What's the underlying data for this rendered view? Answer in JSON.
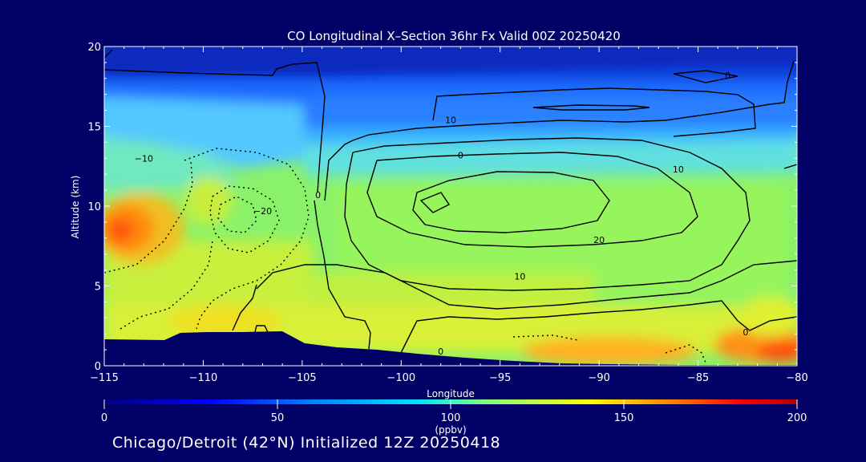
{
  "chart_data": {
    "type": "heatmap",
    "title": "CO Longitudinal X–Section 36hr  Fx Valid 00Z 20250420",
    "xlabel": "Longitude",
    "ylabel": "Altitude (km)",
    "xlim": [
      -115,
      -80
    ],
    "ylim": [
      0,
      20
    ],
    "x_ticks": [
      -115,
      -110,
      -105,
      -100,
      -95,
      -90,
      -85,
      -80
    ],
    "x_tick_labels": [
      "−115",
      "−110",
      "−105",
      "−100",
      "−95",
      "−90",
      "−85",
      "−80"
    ],
    "y_ticks": [
      0,
      5,
      10,
      15,
      20
    ],
    "y_tick_labels": [
      "0",
      "5",
      "10",
      "15",
      "20"
    ],
    "colorbar": {
      "min": 0,
      "max": 200,
      "ticks": [
        0,
        50,
        100,
        150,
        200
      ],
      "tick_labels": [
        "0",
        "50",
        "100",
        "150",
        "200"
      ],
      "units": "(ppbv)",
      "colors": [
        "#000080",
        "#0000ff",
        "#0080ff",
        "#00e0ff",
        "#80ff80",
        "#ffff00",
        "#ff8000",
        "#ff0000",
        "#b00000"
      ]
    },
    "contour_labels": [
      {
        "lon": -113,
        "alt": 13.0,
        "text": "−10"
      },
      {
        "lon": -107,
        "alt": 9.7,
        "text": "−20"
      },
      {
        "lon": -97,
        "alt": 13.2,
        "text": "0"
      },
      {
        "lon": -97.5,
        "alt": 15.4,
        "text": "10"
      },
      {
        "lon": -86,
        "alt": 12.3,
        "text": "10"
      },
      {
        "lon": -90,
        "alt": 7.9,
        "text": "20"
      },
      {
        "lon": -94,
        "alt": 5.6,
        "text": "10"
      },
      {
        "lon": -83.5,
        "alt": 18.2,
        "text": "0"
      },
      {
        "lon": -98,
        "alt": 0.9,
        "text": "0"
      },
      {
        "lon": -104.2,
        "alt": 10.7,
        "text": "0"
      },
      {
        "lon": -82.6,
        "alt": 2.1,
        "text": "0"
      }
    ]
  },
  "footer": "Chicago/Detroit (42°N) Initialized 12Z 20250418"
}
